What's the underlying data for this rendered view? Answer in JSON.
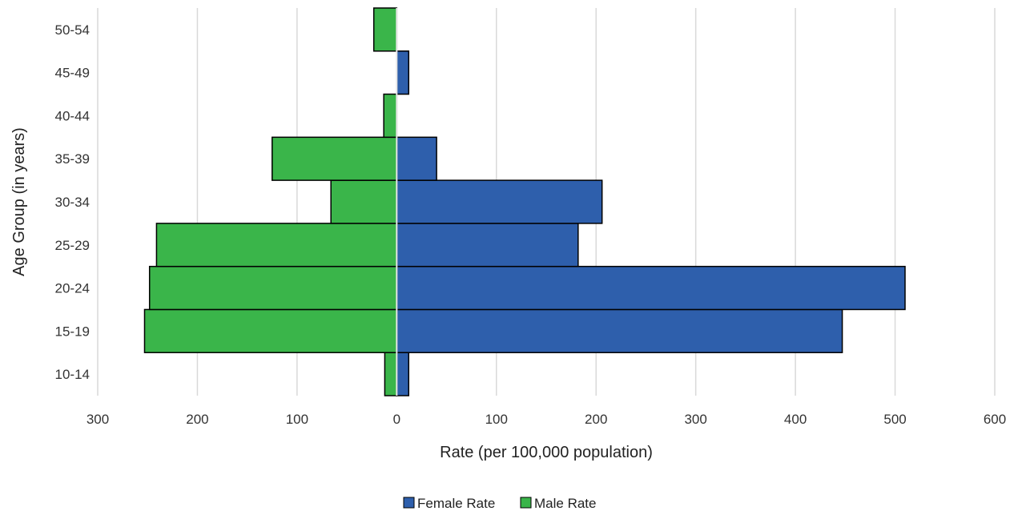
{
  "chart_data": {
    "type": "bar",
    "orientation": "horizontal",
    "layout": "population-pyramid",
    "title": "",
    "xlabel": "Rate (per 100,000 population)",
    "ylabel": "Age Group (in years)",
    "categories": [
      "10-14",
      "15-19",
      "20-24",
      "25-29",
      "30-34",
      "35-39",
      "40-44",
      "45-49",
      "50-54"
    ],
    "series": [
      {
        "name": "Female Rate",
        "side": "right",
        "color": "#2e5fac",
        "values": [
          12,
          447,
          510,
          182,
          206,
          40,
          0,
          12,
          0
        ]
      },
      {
        "name": "Male Rate",
        "side": "left",
        "color": "#3ab54a",
        "values": [
          12,
          253,
          248,
          241,
          66,
          125,
          13,
          0,
          23
        ]
      }
    ],
    "xlim": [
      -300,
      600
    ],
    "xticks": [
      -300,
      -200,
      -100,
      0,
      100,
      200,
      300,
      400,
      500,
      600
    ],
    "xtick_labels": [
      "300",
      "200",
      "100",
      "0",
      "100",
      "200",
      "300",
      "400",
      "500",
      "600"
    ],
    "grid": "vertical",
    "legend": "bottom-center",
    "legend_items": [
      "Female Rate",
      "Male Rate"
    ]
  }
}
